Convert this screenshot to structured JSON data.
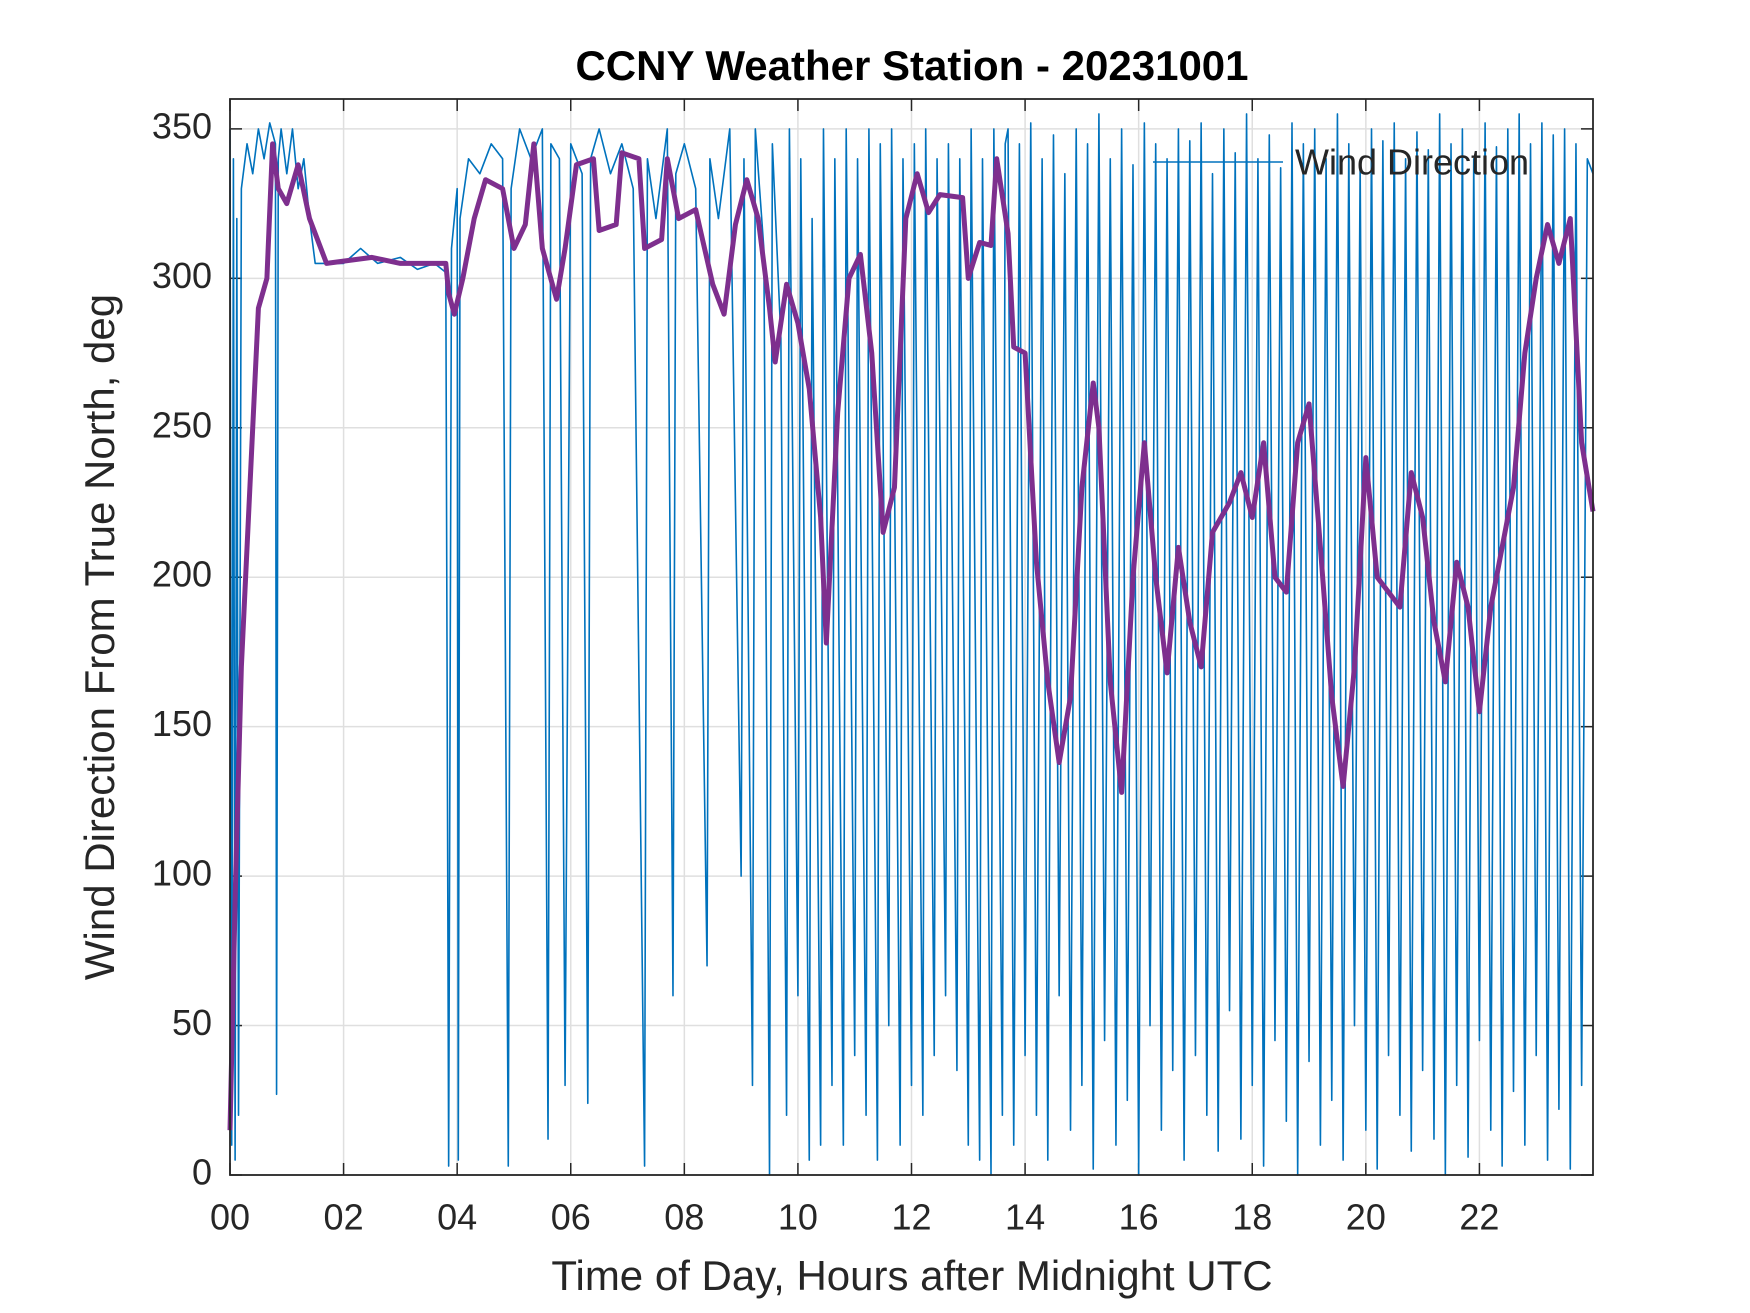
{
  "chart_data": {
    "type": "line",
    "title": "CCNY Weather Station - 20231001",
    "xlabel": "Time of Day, Hours after Midnight UTC",
    "ylabel": "Wind Direction From True North, deg",
    "xlim": [
      0,
      24
    ],
    "ylim": [
      0,
      360
    ],
    "xticks": [
      {
        "value": 0,
        "label": "00"
      },
      {
        "value": 2,
        "label": "02"
      },
      {
        "value": 4,
        "label": "04"
      },
      {
        "value": 6,
        "label": "06"
      },
      {
        "value": 8,
        "label": "08"
      },
      10,
      12,
      14,
      16,
      18,
      20,
      22
    ],
    "yticks": [
      0,
      50,
      100,
      150,
      200,
      250,
      300,
      350
    ],
    "grid": true,
    "legend": "northeast",
    "series": [
      {
        "name": "Wind Direction",
        "color": "#0072BD",
        "x": [
          0,
          0.03,
          0.06,
          0.09,
          0.12,
          0.15,
          0.2,
          0.3,
          0.4,
          0.5,
          0.6,
          0.7,
          0.8,
          0.82,
          0.85,
          0.9,
          1.0,
          1.1,
          1.2,
          1.3,
          1.4,
          1.5,
          2.0,
          2.3,
          2.6,
          3.0,
          3.3,
          3.6,
          3.8,
          3.85,
          3.9,
          4.0,
          4.02,
          4.05,
          4.2,
          4.4,
          4.6,
          4.8,
          4.9,
          4.95,
          5.1,
          5.3,
          5.5,
          5.6,
          5.65,
          5.8,
          5.9,
          6.0,
          6.2,
          6.3,
          6.35,
          6.5,
          6.7,
          6.9,
          7.1,
          7.3,
          7.35,
          7.5,
          7.7,
          7.8,
          7.85,
          8.0,
          8.2,
          8.4,
          8.45,
          8.6,
          8.8,
          9.0,
          9.05,
          9.2,
          9.25,
          9.4,
          9.5,
          9.55,
          9.7,
          9.8,
          9.85,
          10.0,
          10.05,
          10.2,
          10.25,
          10.4,
          10.45,
          10.6,
          10.65,
          10.8,
          10.85,
          11.0,
          11.05,
          11.2,
          11.25,
          11.4,
          11.45,
          11.6,
          11.65,
          11.8,
          11.85,
          12.0,
          12.05,
          12.2,
          12.25,
          12.4,
          12.45,
          12.6,
          12.65,
          12.8,
          12.85,
          13.0,
          13.05,
          13.2,
          13.25,
          13.4,
          13.45,
          13.6,
          13.65,
          13.7,
          13.8,
          13.9,
          14.0,
          14.1,
          14.2,
          14.3,
          14.4,
          14.5,
          14.6,
          14.7,
          14.8,
          14.9,
          15.0,
          15.1,
          15.2,
          15.3,
          15.4,
          15.5,
          15.6,
          15.7,
          15.8,
          15.9,
          16.0,
          16.1,
          16.2,
          16.3,
          16.4,
          16.5,
          16.6,
          16.7,
          16.8,
          16.9,
          17.0,
          17.1,
          17.2,
          17.3,
          17.4,
          17.5,
          17.6,
          17.7,
          17.8,
          17.9,
          18.0,
          18.1,
          18.2,
          18.3,
          18.4,
          18.5,
          18.6,
          18.7,
          18.8,
          18.9,
          19.0,
          19.1,
          19.2,
          19.3,
          19.4,
          19.5,
          19.6,
          19.7,
          19.8,
          19.9,
          20.0,
          20.1,
          20.2,
          20.3,
          20.4,
          20.5,
          20.6,
          20.7,
          20.8,
          20.9,
          21.0,
          21.1,
          21.2,
          21.3,
          21.4,
          21.5,
          21.6,
          21.7,
          21.8,
          21.9,
          22.0,
          22.1,
          22.2,
          22.3,
          22.4,
          22.5,
          22.6,
          22.7,
          22.8,
          22.9,
          23.0,
          23.1,
          23.2,
          23.3,
          23.4,
          23.5,
          23.6,
          23.7,
          23.8,
          23.9,
          24.0
        ],
        "values": [
          350,
          10,
          340,
          5,
          320,
          20,
          330,
          345,
          335,
          350,
          340,
          352,
          345,
          27,
          340,
          350,
          335,
          350,
          330,
          340,
          320,
          305,
          305,
          310,
          305,
          307,
          303,
          305,
          302,
          3,
          310,
          330,
          5,
          320,
          340,
          335,
          345,
          340,
          3,
          330,
          350,
          340,
          350,
          12,
          345,
          340,
          30,
          345,
          335,
          24,
          340,
          350,
          335,
          345,
          330,
          3,
          340,
          320,
          350,
          60,
          335,
          345,
          330,
          70,
          340,
          320,
          350,
          100,
          340,
          30,
          350,
          310,
          0,
          345,
          280,
          20,
          350,
          60,
          340,
          5,
          320,
          10,
          350,
          30,
          340,
          10,
          350,
          40,
          340,
          20,
          350,
          5,
          345,
          50,
          350,
          10,
          340,
          30,
          345,
          20,
          350,
          40,
          340,
          60,
          345,
          35,
          340,
          10,
          350,
          5,
          340,
          0,
          350,
          20,
          345,
          350,
          10,
          345,
          40,
          352,
          20,
          340,
          5,
          348,
          60,
          335,
          15,
          350,
          30,
          345,
          2,
          355,
          45,
          340,
          10,
          350,
          25,
          338,
          0,
          352,
          50,
          345,
          15,
          340,
          35,
          350,
          5,
          346,
          40,
          352,
          20,
          335,
          8,
          350,
          55,
          342,
          12,
          355,
          30,
          340,
          3,
          348,
          45,
          337,
          18,
          352,
          0,
          345,
          38,
          350,
          10,
          340,
          25,
          355,
          5,
          345,
          50,
          338,
          15,
          350,
          2,
          346,
          40,
          352,
          20,
          340,
          8,
          349,
          35,
          343,
          12,
          355,
          0,
          345,
          30,
          350,
          6,
          340,
          45,
          352,
          15,
          344,
          3,
          350,
          28,
          355,
          10,
          345,
          40,
          352,
          5,
          348,
          22,
          350,
          2,
          345,
          30,
          340,
          335
        ]
      },
      {
        "color": "#7E2F8E",
        "x": [
          0,
          0.1,
          0.2,
          0.35,
          0.5,
          0.65,
          0.75,
          0.85,
          1.0,
          1.2,
          1.4,
          1.7,
          2.5,
          3.0,
          3.8,
          3.85,
          3.95,
          4.1,
          4.3,
          4.5,
          4.8,
          5.0,
          5.2,
          5.35,
          5.5,
          5.75,
          5.9,
          6.1,
          6.4,
          6.5,
          6.8,
          6.9,
          7.2,
          7.3,
          7.6,
          7.7,
          7.9,
          8.2,
          8.5,
          8.7,
          8.9,
          9.1,
          9.3,
          9.5,
          9.6,
          9.8,
          10.0,
          10.2,
          10.4,
          10.5,
          10.7,
          10.9,
          11.1,
          11.3,
          11.5,
          11.7,
          11.9,
          12.1,
          12.3,
          12.5,
          12.9,
          13.0,
          13.2,
          13.4,
          13.5,
          13.7,
          13.8,
          14.0,
          14.2,
          14.4,
          14.6,
          14.8,
          15.0,
          15.2,
          15.3,
          15.5,
          15.7,
          15.9,
          16.1,
          16.3,
          16.5,
          16.7,
          16.9,
          17.1,
          17.3,
          17.6,
          17.8,
          18.0,
          18.2,
          18.4,
          18.6,
          18.8,
          19.0,
          19.2,
          19.4,
          19.6,
          19.8,
          20.0,
          20.2,
          20.4,
          20.6,
          20.8,
          21.0,
          21.2,
          21.4,
          21.6,
          21.8,
          22.0,
          22.2,
          22.4,
          22.6,
          22.8,
          23.0,
          23.2,
          23.4,
          23.6,
          23.8,
          24.0
        ],
        "values": [
          15,
          100,
          170,
          230,
          290,
          300,
          345,
          330,
          325,
          338,
          320,
          305,
          307,
          305,
          305,
          295,
          288,
          300,
          320,
          333,
          330,
          310,
          318,
          345,
          310,
          293,
          310,
          338,
          340,
          316,
          318,
          342,
          340,
          310,
          313,
          340,
          320,
          323,
          298,
          288,
          318,
          333,
          320,
          290,
          272,
          298,
          285,
          263,
          220,
          178,
          255,
          300,
          308,
          275,
          215,
          230,
          320,
          335,
          322,
          328,
          327,
          300,
          312,
          311,
          340,
          315,
          277,
          275,
          205,
          165,
          138,
          160,
          230,
          265,
          250,
          165,
          128,
          200,
          245,
          200,
          168,
          210,
          185,
          170,
          215,
          225,
          235,
          220,
          245,
          200,
          195,
          245,
          258,
          210,
          160,
          130,
          170,
          240,
          200,
          195,
          190,
          235,
          220,
          185,
          165,
          205,
          190,
          155,
          190,
          210,
          230,
          275,
          300,
          318,
          305,
          320,
          245,
          222
        ]
      }
    ]
  }
}
